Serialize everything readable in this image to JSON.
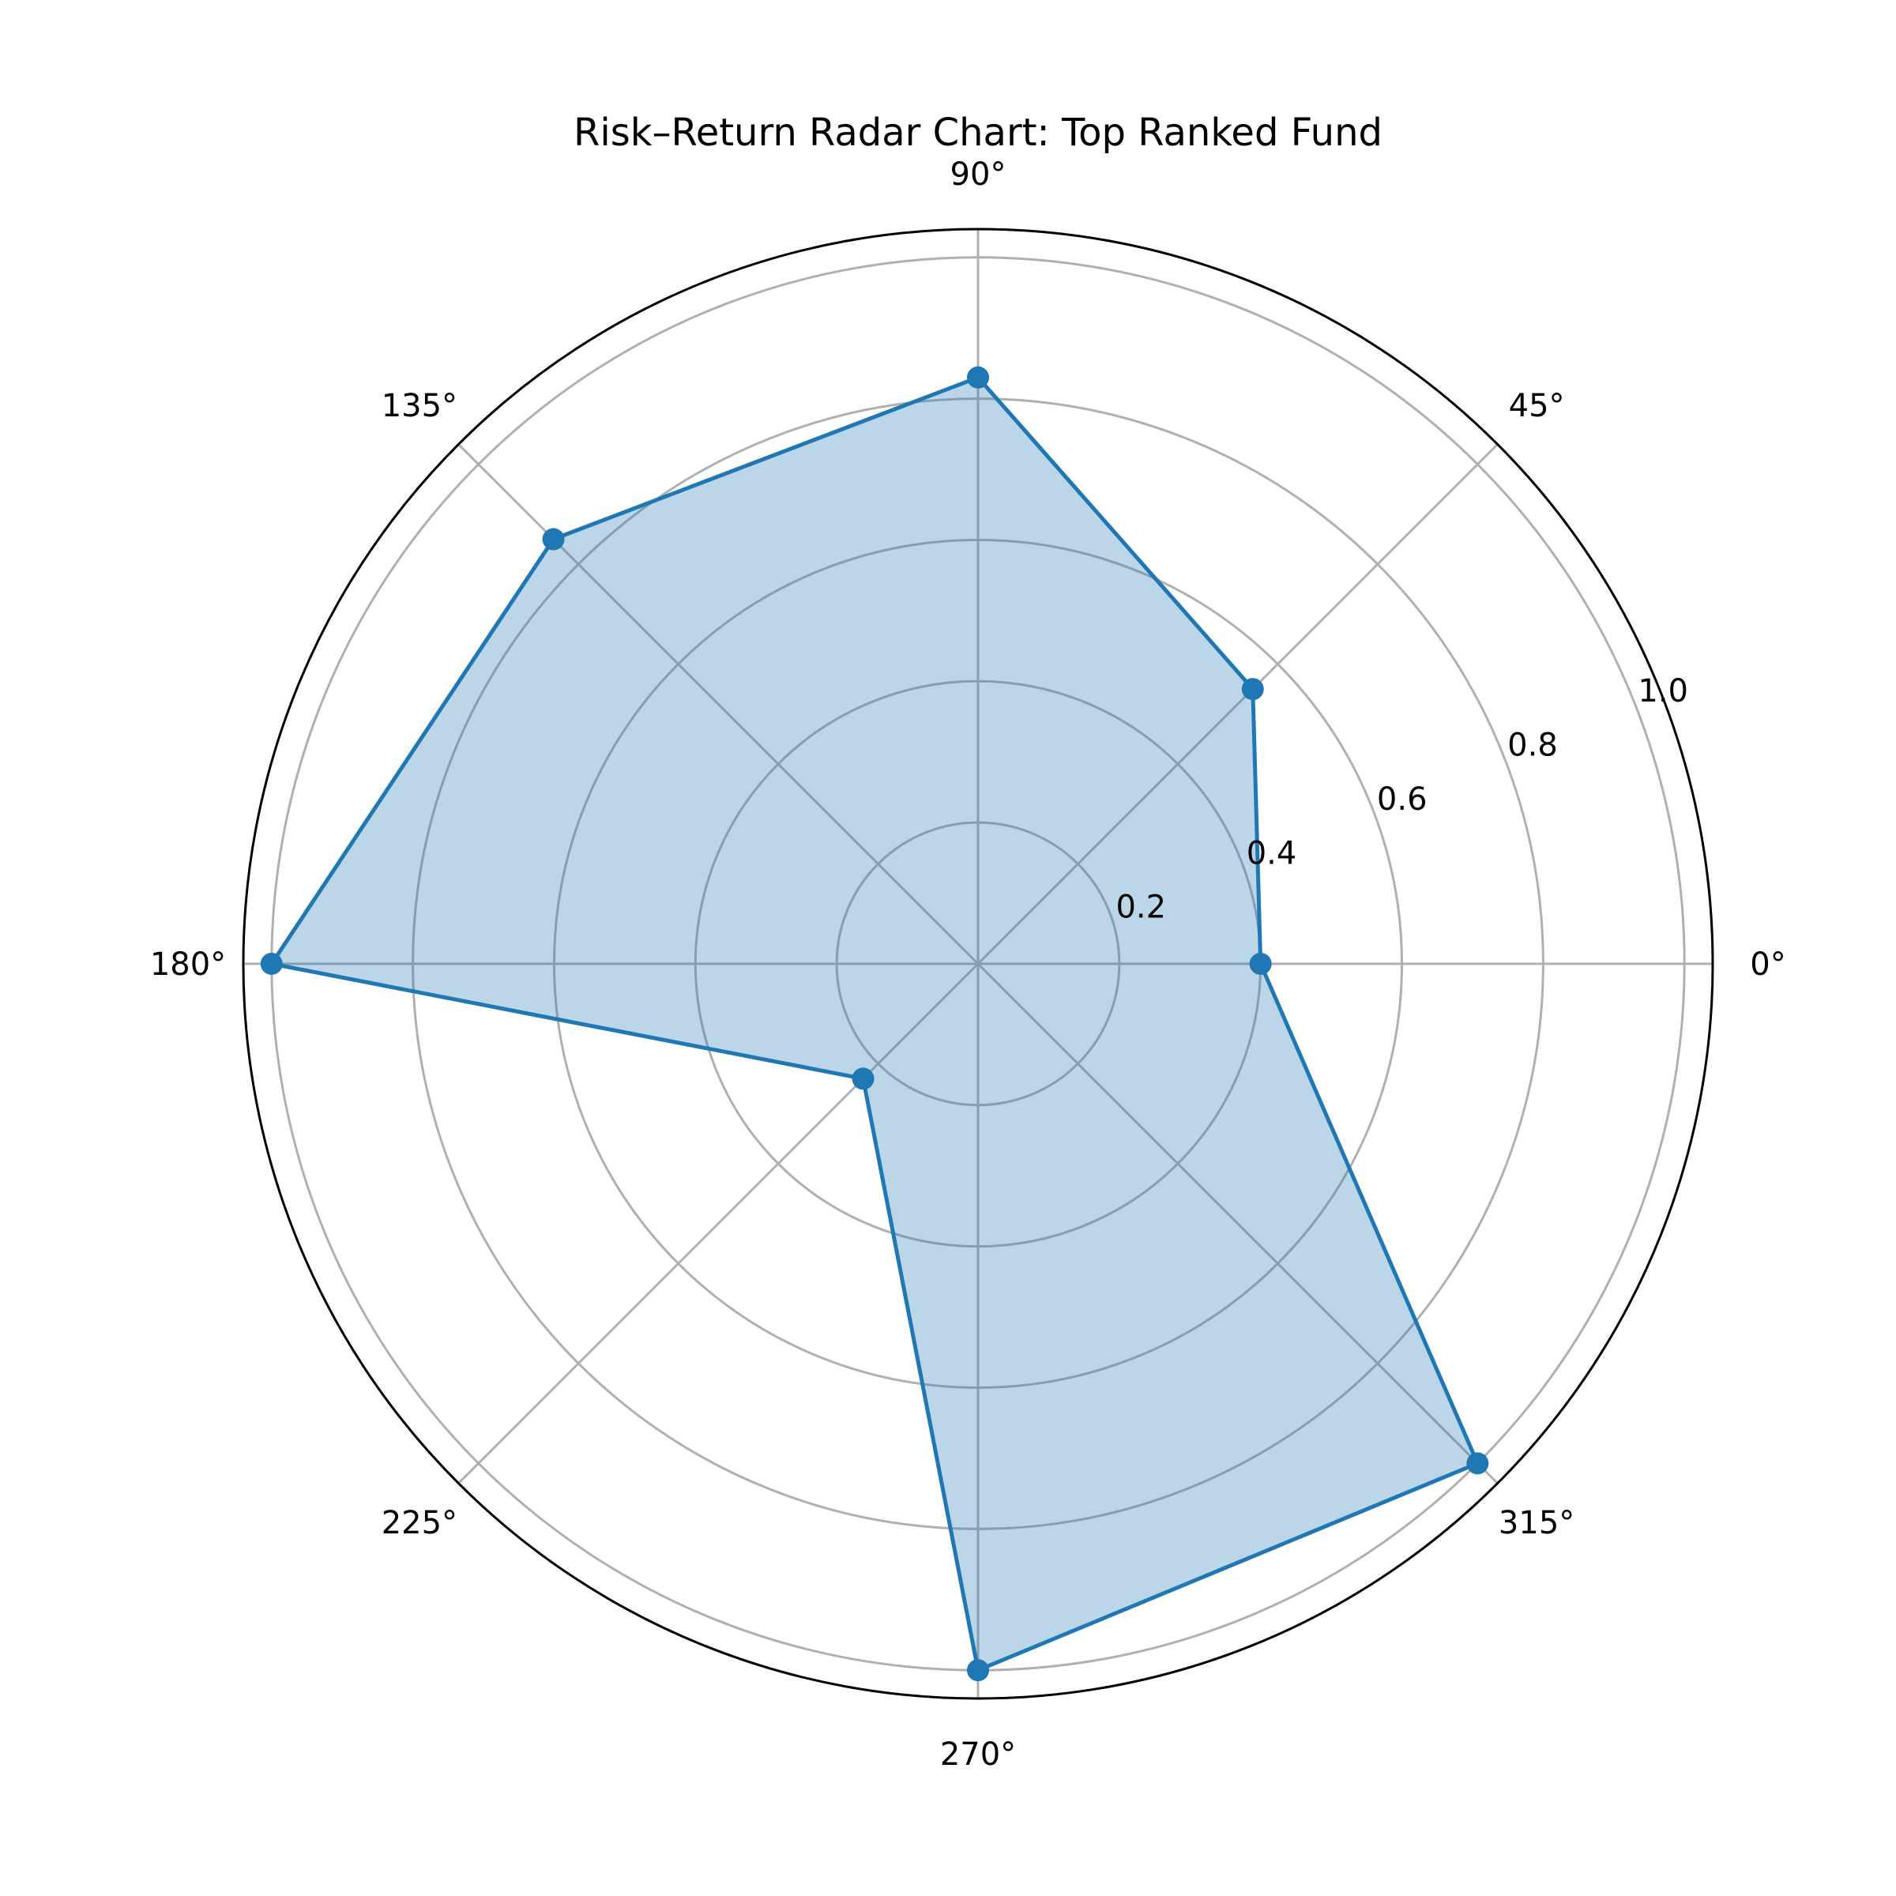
{
  "chart_data": {
    "type": "radar",
    "title": "Risk–Return Radar Chart: Top Ranked Fund",
    "angle_unit": "degrees",
    "angle_ticks": [
      0,
      45,
      90,
      135,
      180,
      225,
      270,
      315
    ],
    "angle_tick_labels": [
      "0°",
      "45°",
      "90°",
      "135°",
      "180°",
      "225°",
      "270°",
      "315°"
    ],
    "radial_ticks": [
      0.2,
      0.4,
      0.6,
      0.8,
      1.0
    ],
    "radial_tick_labels": [
      "0.2",
      "0.4",
      "0.6",
      "0.8",
      "1.0"
    ],
    "rlim": [
      0,
      1.04
    ],
    "grid": true,
    "series": [
      {
        "color": "#1f77b4",
        "fill_color": "#1f77b4",
        "fill_opacity": 0.3,
        "points": [
          {
            "angle": 0,
            "value": 0.4
          },
          {
            "angle": 45,
            "value": 0.55
          },
          {
            "angle": 90,
            "value": 0.83
          },
          {
            "angle": 135,
            "value": 0.85
          },
          {
            "angle": 180,
            "value": 1.0
          },
          {
            "angle": 225,
            "value": 0.23
          },
          {
            "angle": 270,
            "value": 1.0
          },
          {
            "angle": 315,
            "value": 1.0
          }
        ]
      }
    ]
  }
}
